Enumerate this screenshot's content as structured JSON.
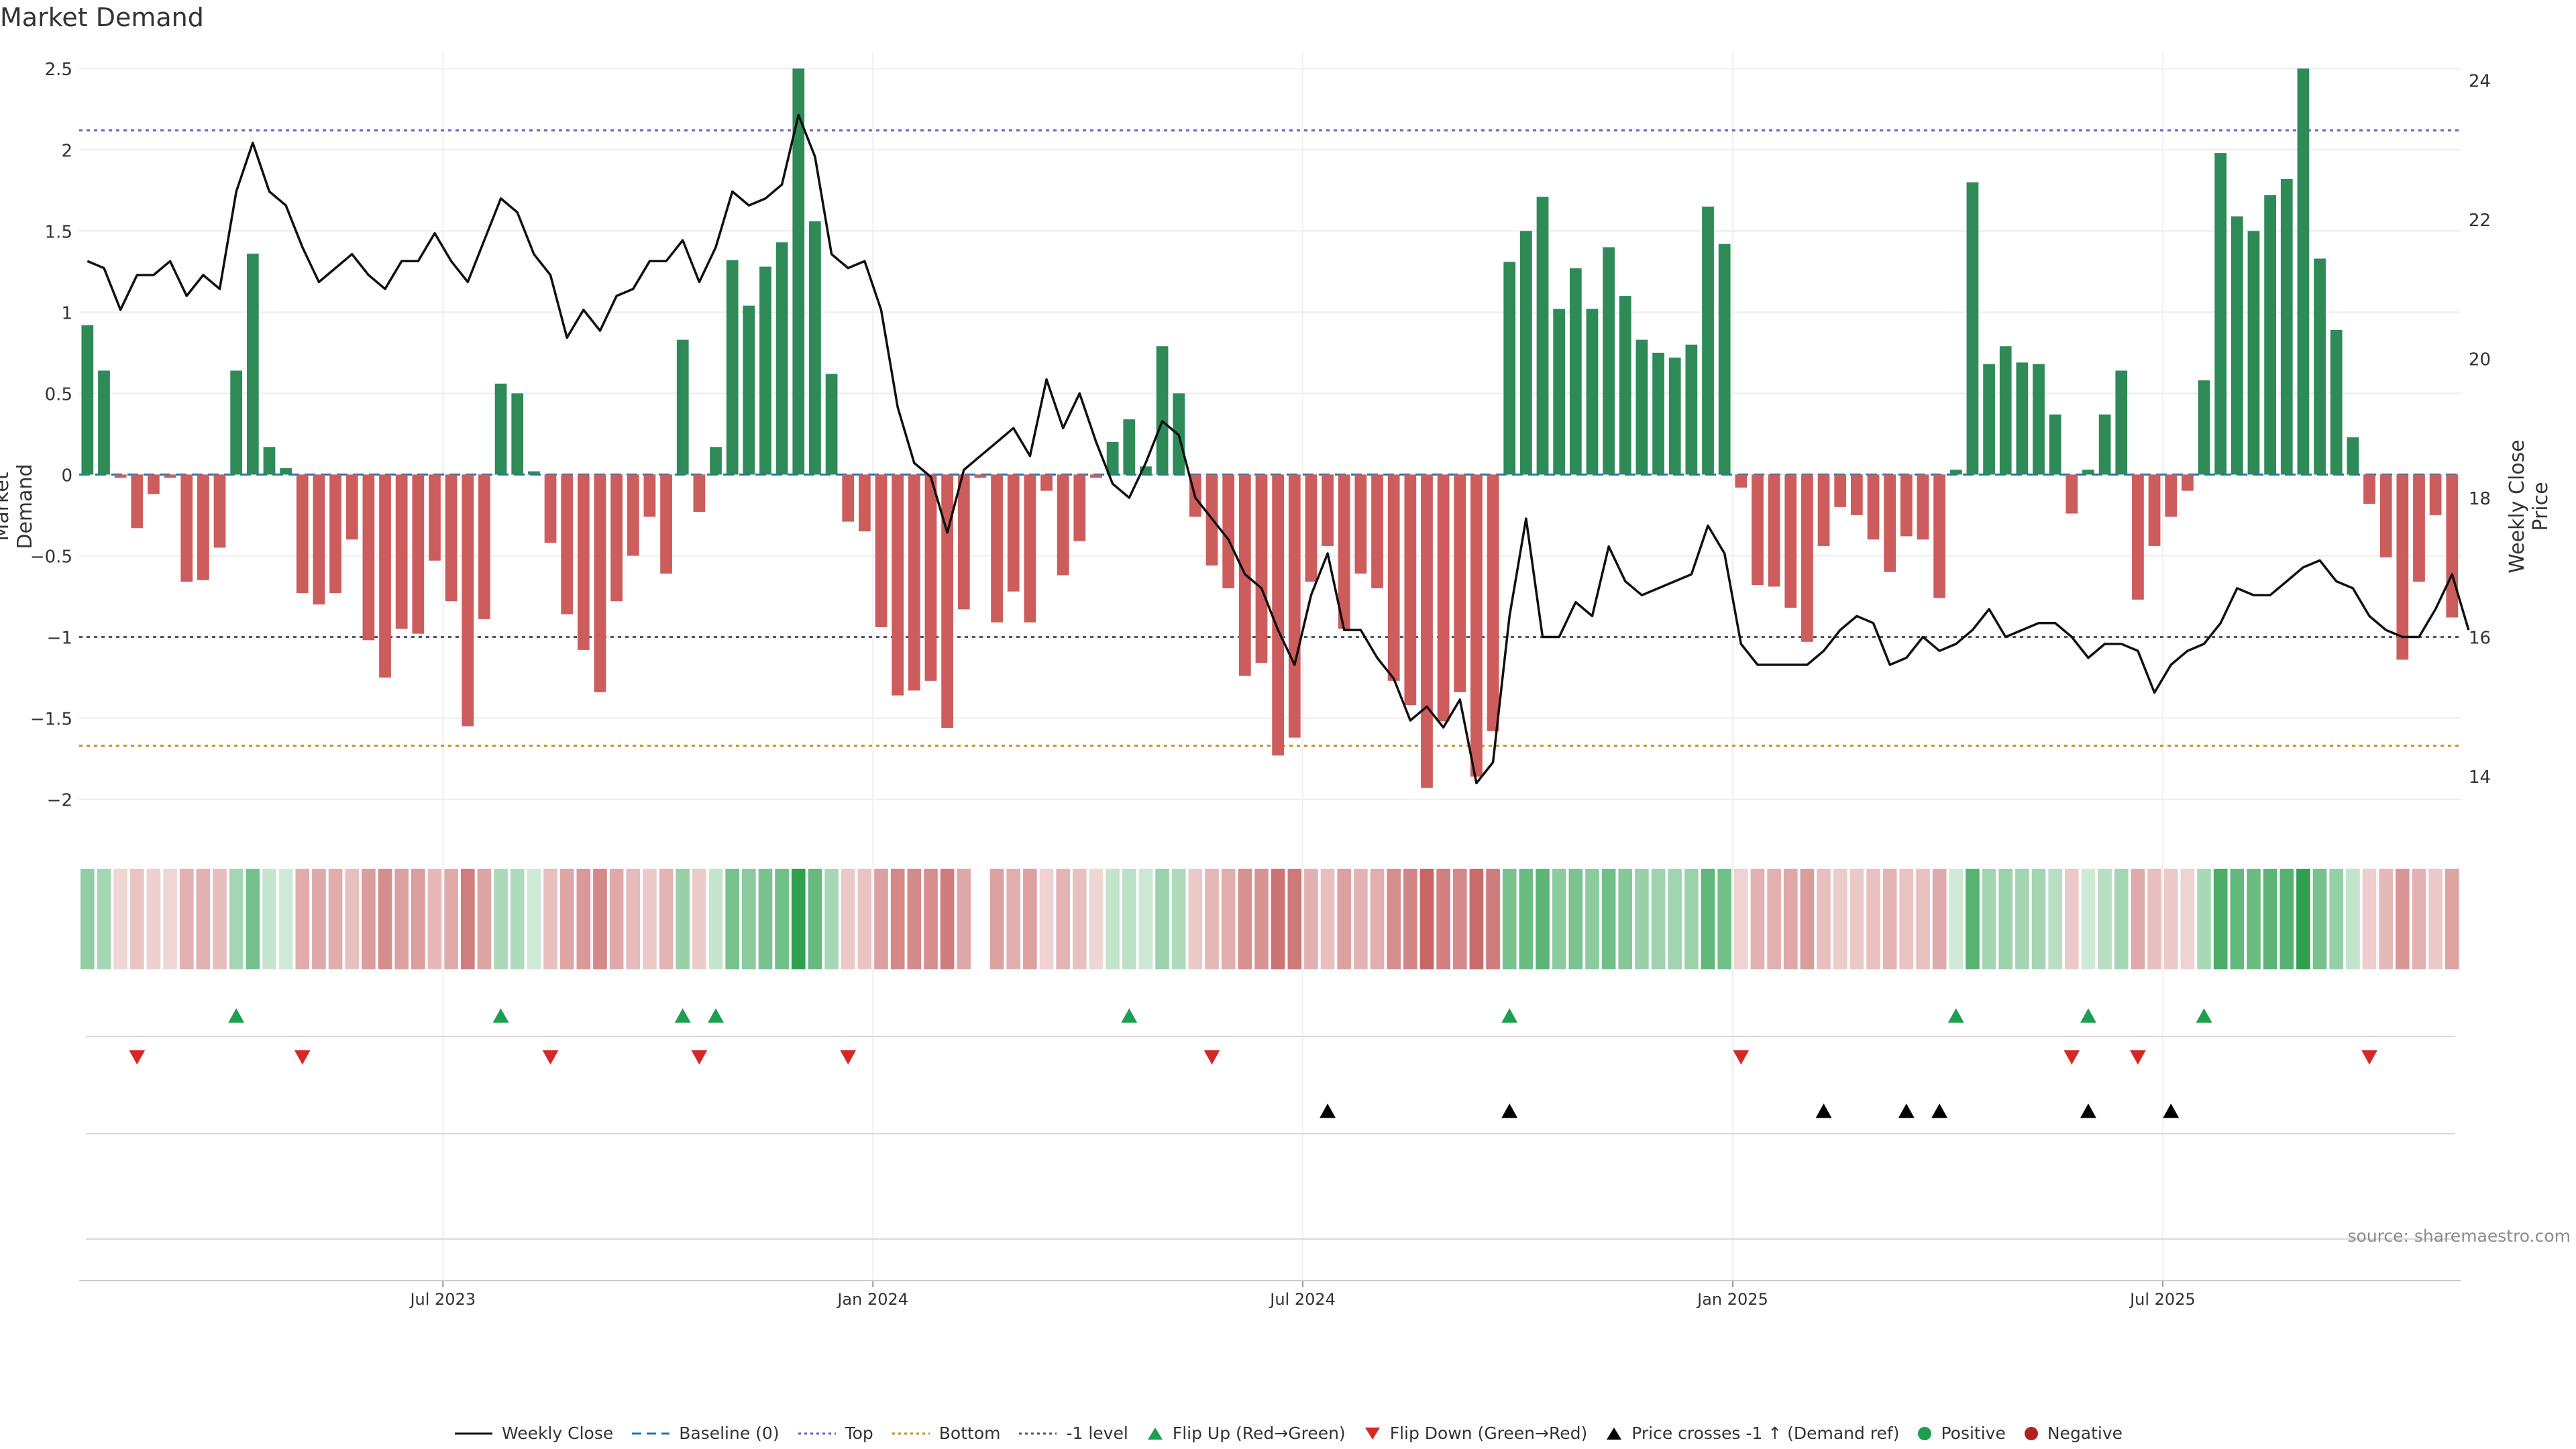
{
  "title": "Market Demand",
  "source": "source: sharemaestro.com",
  "colors": {
    "positive": "#2e8b57",
    "negative": "#cd5c5c",
    "price": "#111111",
    "baseline": "#1f77b4",
    "top": "#6a5acd",
    "bottom": "#d08a1a",
    "neg1": "#555577",
    "flip_up": "#1e9e50",
    "flip_down": "#d62728",
    "cross": "#000000"
  },
  "chart_data": {
    "type": "bar+line",
    "title": "Market Demand",
    "ylabel": "Market Demand",
    "y2label": "Weekly Close Price",
    "ylim": [
      -2.2,
      2.6
    ],
    "y2lim": [
      13.2,
      24.4
    ],
    "yticks": [
      2.5,
      2,
      1.5,
      1,
      0.5,
      0,
      -0.5,
      -1,
      -1.5,
      -2
    ],
    "ytick_labels": [
      "2.5",
      "2",
      "1.5",
      "1",
      "0.5",
      "0",
      "−0.5",
      "−1",
      "−1.5",
      "−2"
    ],
    "y2ticks": [
      24,
      22,
      20,
      18,
      16,
      14
    ],
    "y2tick_labels": [
      "24",
      "22",
      "20",
      "18",
      "16",
      "14"
    ],
    "xlim": [
      0,
      145
    ],
    "xticks": [
      22,
      48,
      74,
      100,
      126
    ],
    "xtick_labels": [
      "Jul 2023",
      "Jan 2024",
      "Jul 2024",
      "Jan 2025",
      "Jul 2025"
    ],
    "levels": {
      "top": 2.12,
      "bottom": -1.67,
      "neg1": -1.0,
      "baseline": 0
    },
    "demand": [
      0.92,
      0.64,
      -0.02,
      -0.33,
      -0.12,
      -0.02,
      -0.66,
      -0.65,
      -0.45,
      0.64,
      1.36,
      0.17,
      0.04,
      -0.73,
      -0.8,
      -0.73,
      -0.4,
      -1.02,
      -1.25,
      -0.95,
      -0.98,
      -0.53,
      -0.78,
      -1.55,
      -0.89,
      0.56,
      0.5,
      0.02,
      -0.42,
      -0.86,
      -1.08,
      -1.34,
      -0.78,
      -0.5,
      -0.26,
      -0.61,
      0.83,
      -0.23,
      0.17,
      1.32,
      1.04,
      1.28,
      1.43,
      2.5,
      1.56,
      0.62,
      -0.29,
      -0.35,
      -0.94,
      -1.36,
      -1.33,
      -1.27,
      -1.56,
      -0.83,
      -0.02,
      -0.91,
      -0.72,
      -0.91,
      -0.1,
      -0.62,
      -0.41,
      -0.02,
      0.2,
      0.34,
      0.05,
      0.79,
      0.5,
      -0.26,
      -0.56,
      -0.7,
      -1.24,
      -1.16,
      -1.73,
      -1.62,
      -0.66,
      -0.44,
      -0.95,
      -0.61,
      -0.7,
      -1.27,
      -1.42,
      -1.93,
      -1.52,
      -1.34,
      -1.86,
      -1.58,
      1.31,
      1.5,
      1.71,
      1.02,
      1.27,
      1.02,
      1.4,
      1.1,
      0.83,
      0.75,
      0.72,
      0.8,
      1.65,
      1.42,
      -0.08,
      -0.68,
      -0.69,
      -0.82,
      -1.03,
      -0.44,
      -0.2,
      -0.25,
      -0.4,
      -0.6,
      -0.38,
      -0.4,
      -0.76,
      0.03,
      1.8,
      0.68,
      0.79,
      0.69,
      0.68,
      0.37,
      -0.24,
      0.03,
      0.37,
      0.64,
      -0.77,
      -0.44,
      -0.26,
      -0.1,
      0.58,
      1.98,
      1.59,
      1.5,
      1.72,
      1.82,
      2.5,
      1.33,
      0.89,
      0.23,
      -0.18,
      -0.51,
      -1.14,
      -0.66,
      -0.25,
      -0.88
    ],
    "weekly_close": [
      21.4,
      21.3,
      20.7,
      21.2,
      21.2,
      21.4,
      20.9,
      21.2,
      21.0,
      22.4,
      23.1,
      22.4,
      22.2,
      21.6,
      21.1,
      21.3,
      21.5,
      21.2,
      21.0,
      21.4,
      21.4,
      21.8,
      21.4,
      21.1,
      21.7,
      22.3,
      22.1,
      21.5,
      21.2,
      20.3,
      20.7,
      20.4,
      20.9,
      21.0,
      21.4,
      21.4,
      21.7,
      21.1,
      21.6,
      22.4,
      22.2,
      22.3,
      22.5,
      23.5,
      22.9,
      21.5,
      21.3,
      21.4,
      20.7,
      19.3,
      18.5,
      18.3,
      17.5,
      18.4,
      18.6,
      18.8,
      19.0,
      18.6,
      19.7,
      19.0,
      19.5,
      18.8,
      18.2,
      18.0,
      18.5,
      19.1,
      18.9,
      18.0,
      17.7,
      17.4,
      16.9,
      16.7,
      16.1,
      15.6,
      16.6,
      17.2,
      16.1,
      16.1,
      15.7,
      15.4,
      14.8,
      15.0,
      14.7,
      15.1,
      13.9,
      14.2,
      16.3,
      17.7,
      16.0,
      16.0,
      16.5,
      16.3,
      17.3,
      16.8,
      16.6,
      16.7,
      16.8,
      16.9,
      17.6,
      17.2,
      15.9,
      15.6,
      15.6,
      15.6,
      15.6,
      15.8,
      16.1,
      16.3,
      16.2,
      15.6,
      15.7,
      16.0,
      15.8,
      15.9,
      16.1,
      16.4,
      16.0,
      16.1,
      16.2,
      16.2,
      16.0,
      15.7,
      15.9,
      15.9,
      15.8,
      15.2,
      15.6,
      15.8,
      15.9,
      16.2,
      16.7,
      16.6,
      16.6,
      16.8,
      17.0,
      17.1,
      16.8,
      16.7,
      16.3,
      16.1,
      16.0,
      16.0,
      16.4,
      16.9,
      16.1
    ],
    "flip_up": [
      9,
      25,
      36,
      38,
      63,
      86,
      113,
      121,
      128
    ],
    "flip_down": [
      3,
      13,
      28,
      37,
      46,
      68,
      100,
      120,
      124,
      138
    ],
    "price_crosses": [
      75,
      86,
      105,
      110,
      112,
      121,
      126
    ],
    "strip_gap": [
      54
    ]
  },
  "legend": [
    {
      "key": "weekly_close",
      "label": "Weekly Close"
    },
    {
      "key": "baseline",
      "label": "Baseline (0)"
    },
    {
      "key": "top",
      "label": "Top"
    },
    {
      "key": "bottom",
      "label": "Bottom"
    },
    {
      "key": "neg1",
      "label": "-1 level"
    },
    {
      "key": "flip_up",
      "label": "Flip Up (Red→Green)"
    },
    {
      "key": "flip_down",
      "label": "Flip Down (Green→Red)"
    },
    {
      "key": "cross",
      "label": "Price crosses -1 ↑ (Demand ref)"
    },
    {
      "key": "positive",
      "label": "Positive"
    },
    {
      "key": "negative",
      "label": "Negative"
    }
  ]
}
